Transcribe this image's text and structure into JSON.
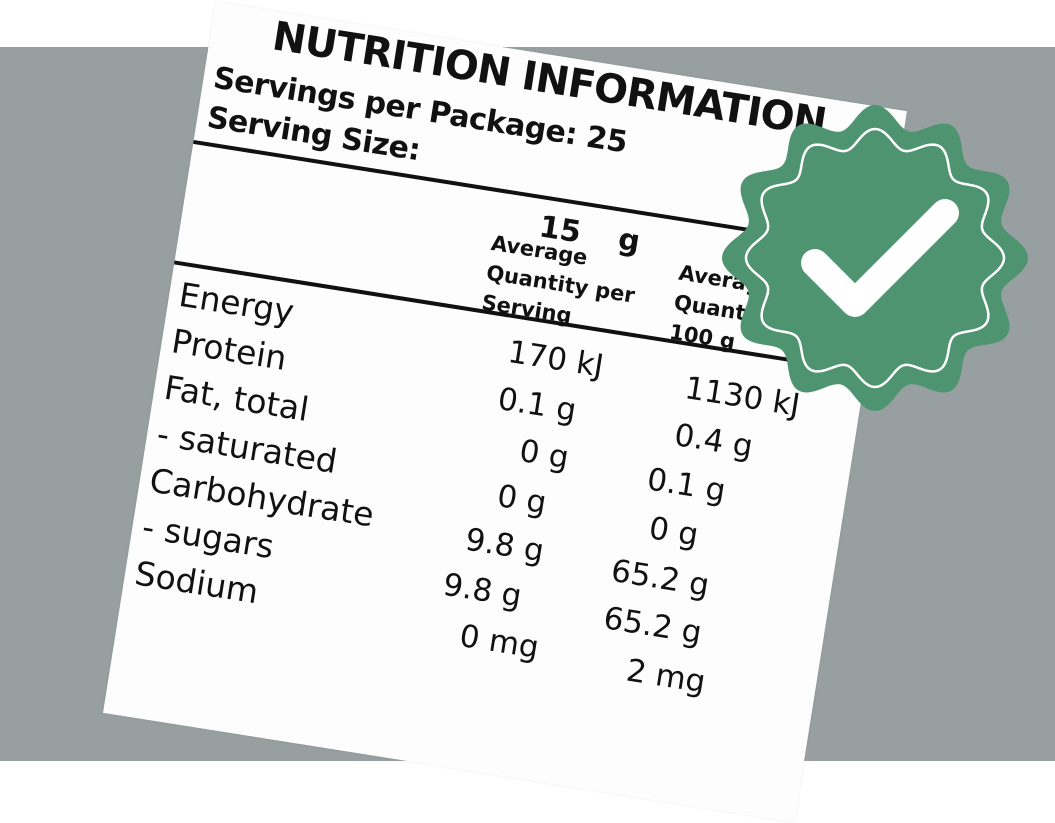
{
  "label": {
    "title": "NUTRITION INFORMATION",
    "servings_per_package": "Servings per Package: 25",
    "serving_size_label": "Serving Size:",
    "serving_size_value": "15",
    "serving_size_unit": "g",
    "column_headers": [
      "Average Quantity per Serving",
      "Average Quantity per 100 g"
    ],
    "nutrients": [
      "Energy",
      "Protein",
      "Fat, total",
      "- saturated",
      "Carbohydrate",
      "- sugars",
      "Sodium"
    ],
    "per_serving": [
      "170  kJ",
      "0.1  g",
      "0  g",
      "0  g",
      "9.8  g",
      "9.8  g",
      "0  mg"
    ],
    "per_100g": [
      "1130  kJ",
      "0.4  g",
      "0.1  g",
      "0  g",
      "65.2  g",
      "65.2  g",
      "2  mg"
    ]
  },
  "badge": {
    "icon": "checkmark-seal-icon",
    "color": "#4e9470"
  },
  "colors": {
    "background_band": "#979fa1",
    "card": "#fdfdfd",
    "text": "#111111"
  }
}
